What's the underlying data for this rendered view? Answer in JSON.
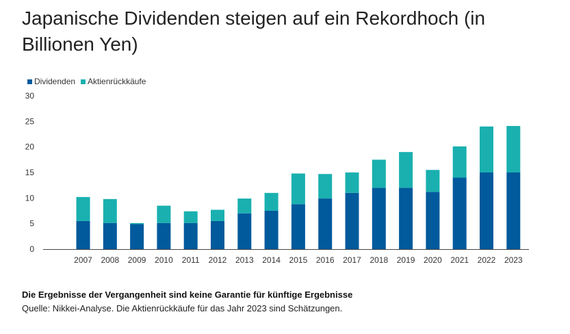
{
  "title": "Japanische Dividenden steigen auf ein Rekordhoch (in Billionen Yen)",
  "footnote": "Die Ergebnisse der Vergangenheit sind keine Garantie für künftige Ergebnisse",
  "source": "Quelle: Nikkei-Analyse. Die Aktienrückkäufe für das Jahr 2023 sind Schätzungen.",
  "chart_data": {
    "type": "bar",
    "stacked": true,
    "title": "Japanische Dividenden steigen auf ein Rekordhoch (in Billionen Yen)",
    "xlabel": "",
    "ylabel": "",
    "ylim": [
      0,
      30
    ],
    "yticks": [
      0,
      5,
      10,
      15,
      20,
      25,
      30
    ],
    "legend_position": "top-left",
    "grid": false,
    "categories": [
      "2007",
      "2008",
      "2009",
      "2010",
      "2011",
      "2012",
      "2013",
      "2014",
      "2015",
      "2016",
      "2017",
      "2018",
      "2019",
      "2020",
      "2021",
      "2022",
      "2023"
    ],
    "series": [
      {
        "name": "Dividenden",
        "color": "#005a9c",
        "values": [
          5.5,
          5.1,
          4.9,
          5.1,
          5.1,
          5.5,
          7.0,
          7.5,
          8.8,
          9.9,
          11.0,
          12.0,
          12.0,
          11.2,
          14.0,
          15.0,
          15.0
        ]
      },
      {
        "name": "Aktienrückkäufe",
        "color": "#1ab0b0",
        "values": [
          4.7,
          4.7,
          0.2,
          3.4,
          2.3,
          2.2,
          2.9,
          3.5,
          6.0,
          4.8,
          4.0,
          5.5,
          7.0,
          4.3,
          6.1,
          9.0,
          9.1
        ]
      }
    ]
  }
}
